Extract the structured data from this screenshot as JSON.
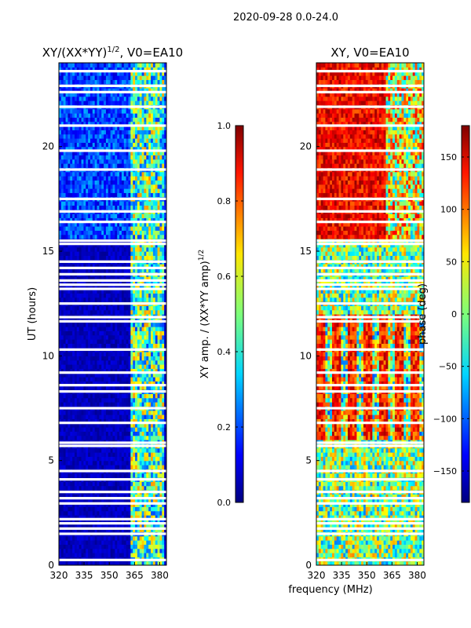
{
  "suptitle": "2020-09-28 0.0-24.0",
  "shared_xlabel": "frequency (MHz)",
  "chart_data": [
    {
      "type": "heatmap",
      "id": "amp",
      "title_main": "XY/(XX*YY)",
      "title_sup": "1/2",
      "title_tail": ", V0=EA10",
      "ylabel": "UT (hours)",
      "x_ticks": [
        320,
        335,
        350,
        365,
        380
      ],
      "xlim": [
        320,
        384
      ],
      "y_ticks": [
        0,
        5,
        10,
        15,
        20
      ],
      "ylim": [
        0,
        24
      ],
      "colormap": "jet",
      "colorbar": {
        "label_main": "XY amp. / (XX*YY amp)",
        "label_sup": "1/2",
        "range": [
          0.0,
          1.0
        ],
        "ticks": [
          "0.0",
          "0.2",
          "0.4",
          "0.6",
          "0.8",
          "1.0"
        ]
      }
    },
    {
      "type": "heatmap",
      "id": "phase",
      "title_main": "XY, V0=EA10",
      "x_ticks": [
        320,
        335,
        350,
        365,
        380
      ],
      "xlim": [
        320,
        384
      ],
      "y_ticks": [
        0,
        5,
        10,
        15,
        20
      ],
      "ylim": [
        0,
        24
      ],
      "colormap": "jet",
      "colorbar": {
        "label_main": "phase (deg)",
        "range": [
          -180,
          180
        ],
        "ticks": [
          "−150",
          "−100",
          "−50",
          "0",
          "50",
          "100",
          "150"
        ]
      }
    }
  ],
  "flagged_ut_hours": [
    0.25,
    1.5,
    1.75,
    2.0,
    2.2,
    2.95,
    3.2,
    3.5,
    4.1,
    4.5,
    5.7,
    5.85,
    6.8,
    7.5,
    8.3,
    8.6,
    9.2,
    10.3,
    11.65,
    11.85,
    12.5,
    13.2,
    13.4,
    13.6,
    13.9,
    14.2,
    14.5,
    15.35,
    15.5,
    16.4,
    16.9,
    17.5,
    18.9,
    19.8,
    21.0,
    21.9,
    22.6,
    22.9,
    23.6
  ],
  "amp_active_band_mhz": [
    363,
    382
  ]
}
